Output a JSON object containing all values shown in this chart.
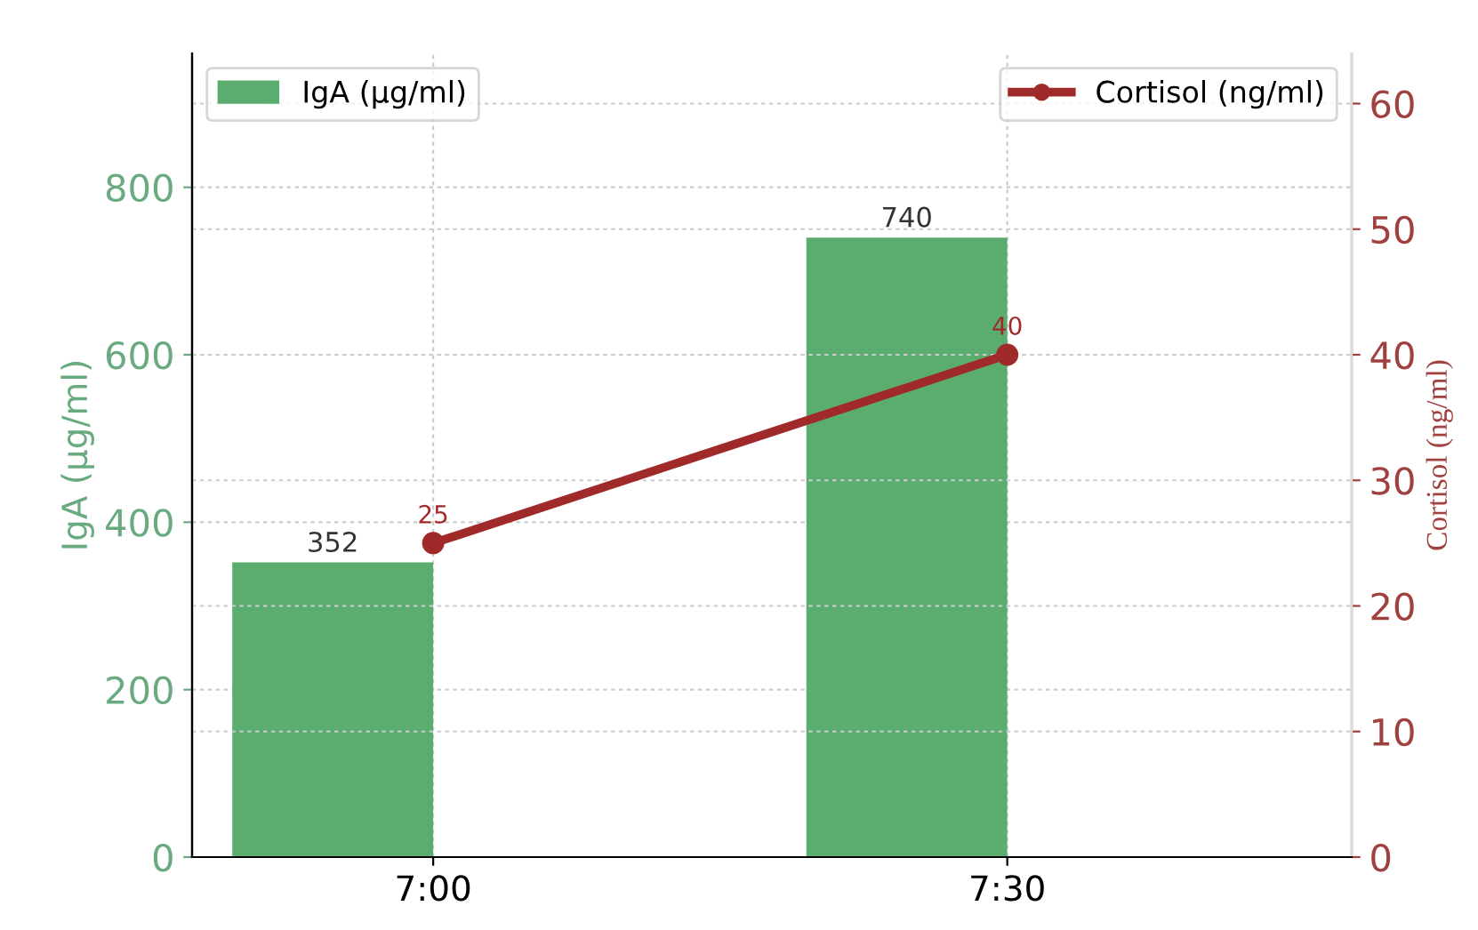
{
  "chart_data": {
    "type": "bar",
    "categories": [
      "7:00",
      "7:30"
    ],
    "series": [
      {
        "name": "IgA (µg/ml)",
        "color": "#5aad6e",
        "values": [
          352,
          740
        ]
      },
      {
        "name": "Cortisol (ng/ml)",
        "type": "line",
        "axis": "y2",
        "color": "#a02a2a",
        "values": [
          25,
          40
        ]
      }
    ],
    "ylabel": "IgA (µg/ml)",
    "y2label": "Cortisol (ng/ml)",
    "ylim": [
      0,
      960
    ],
    "yticks": [
      0,
      200,
      400,
      600,
      800
    ],
    "y2lim": [
      0,
      64
    ],
    "y2ticks": [
      0,
      10,
      20,
      30,
      40,
      50,
      60
    ],
    "grid": true,
    "legend": "top",
    "marker": "circle",
    "line_style": "solid",
    "data_labels": true
  }
}
